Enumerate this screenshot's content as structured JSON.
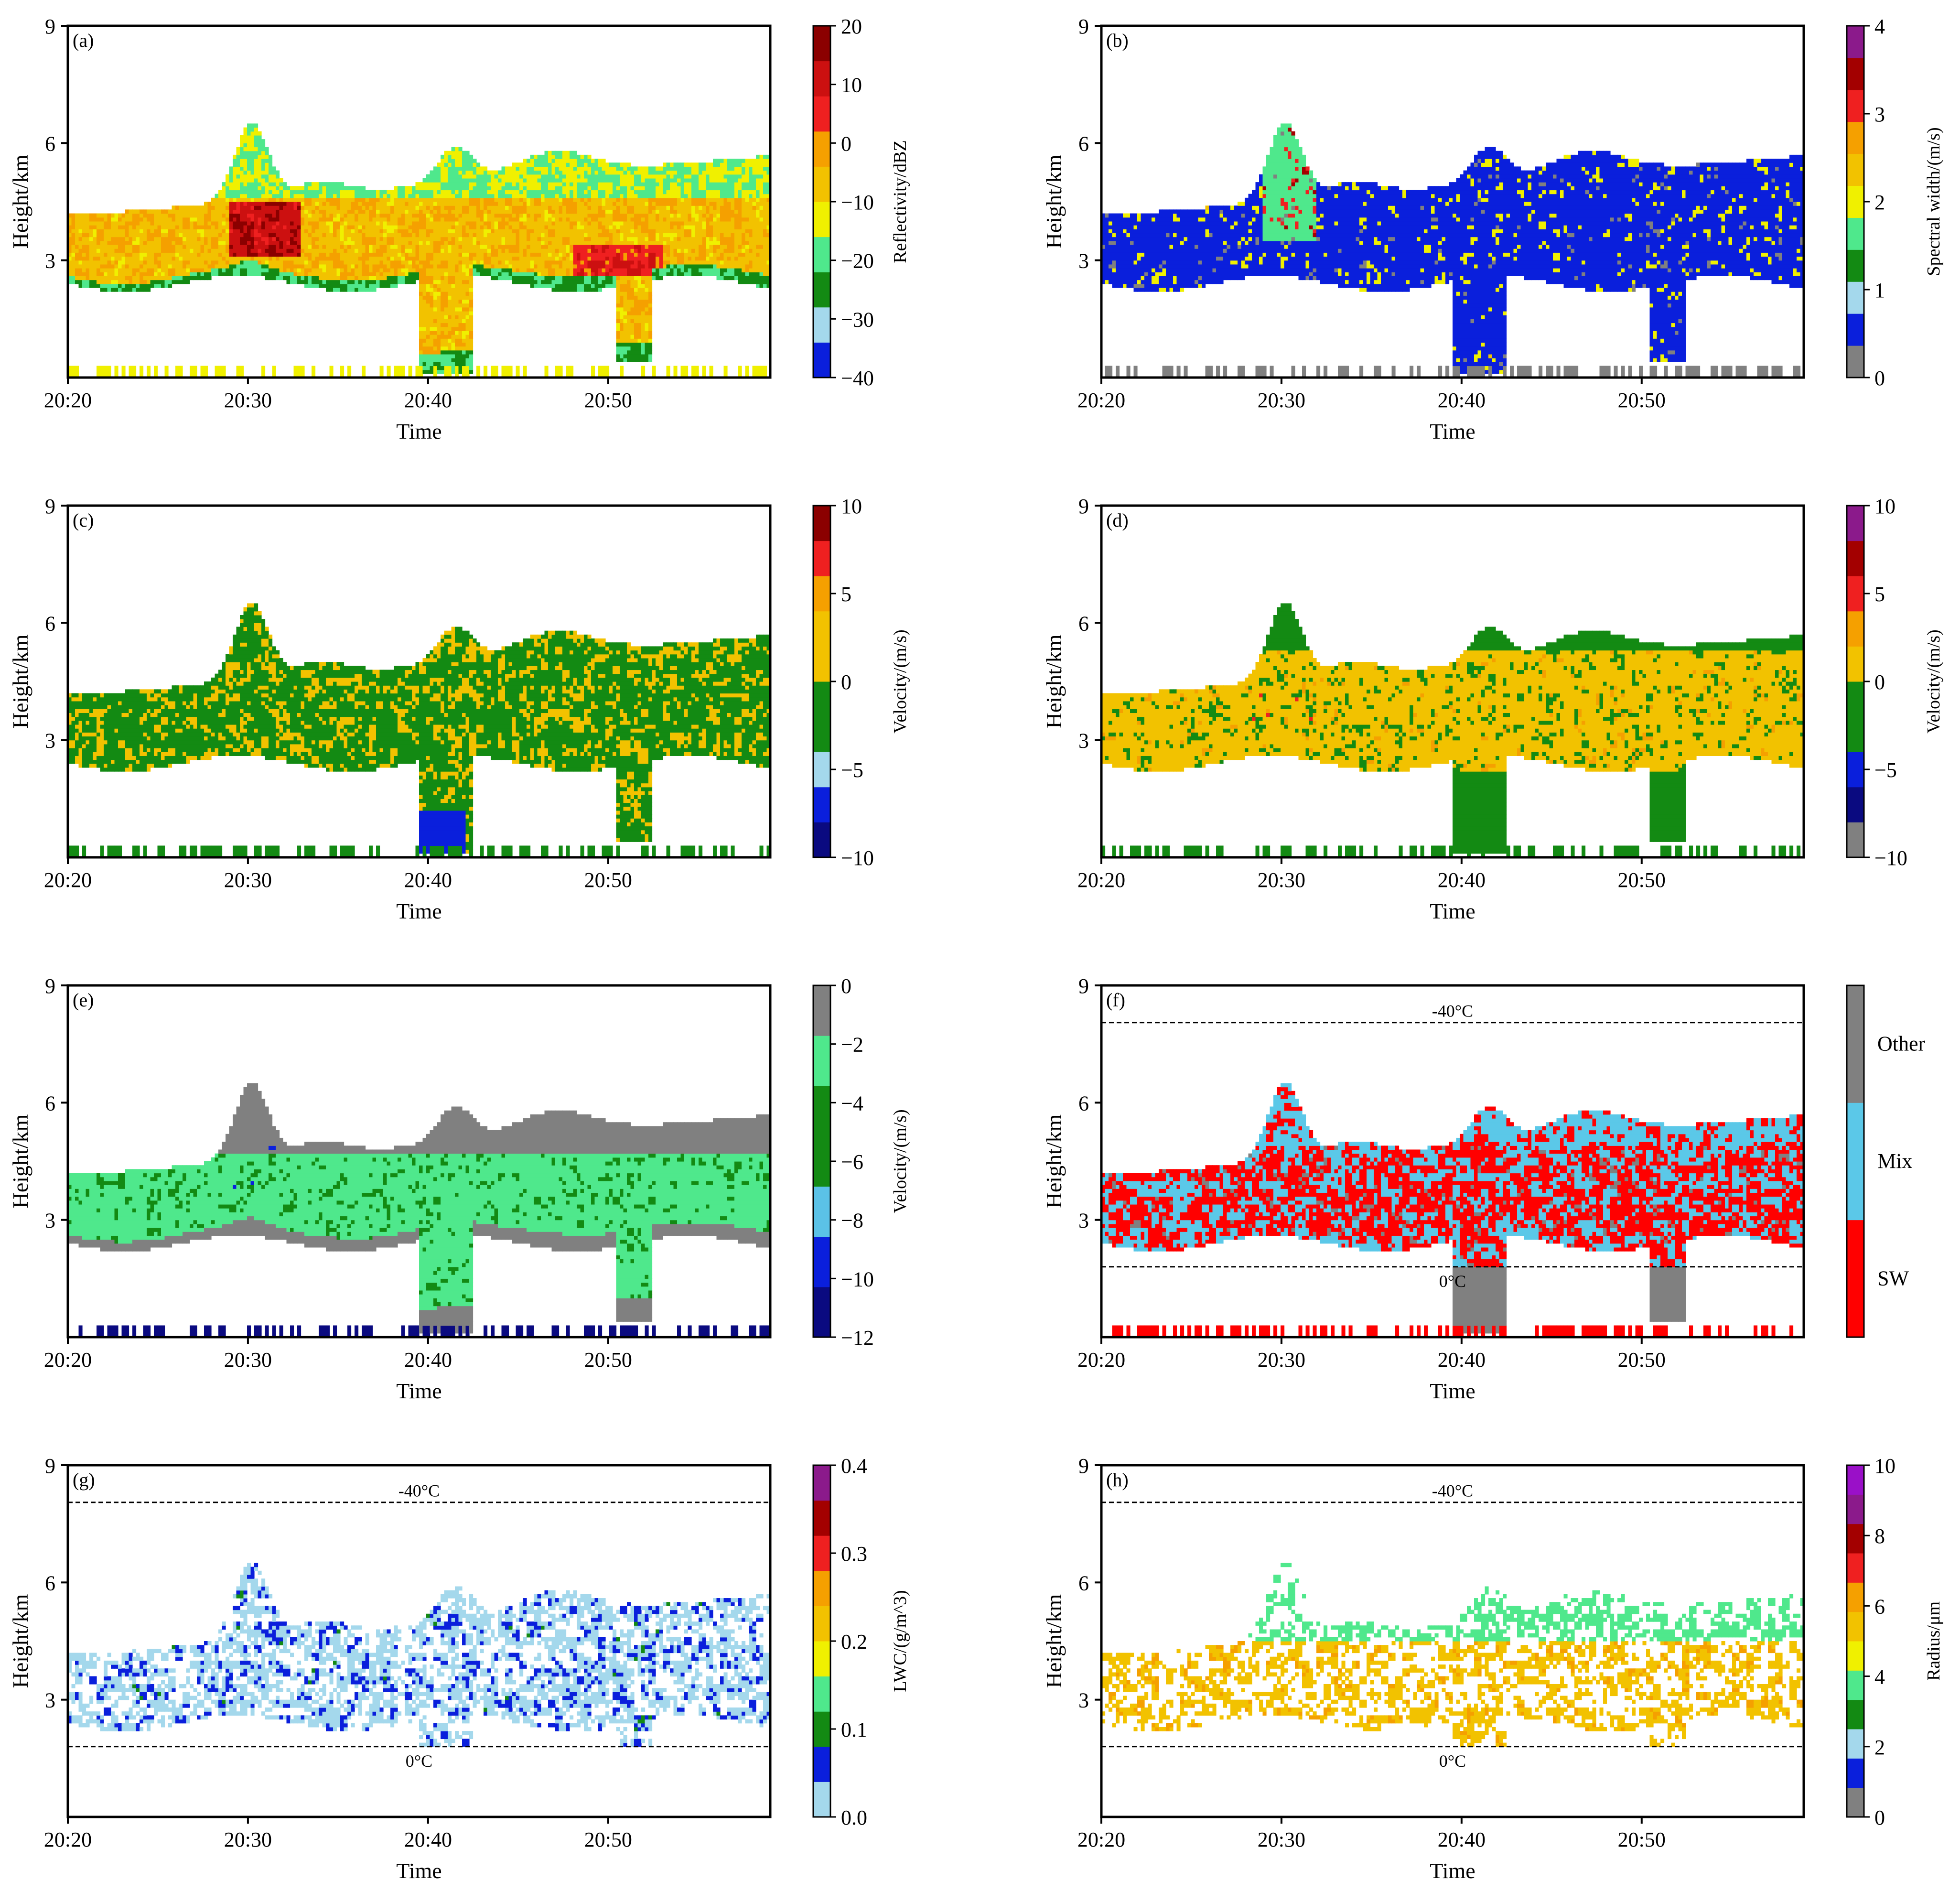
{
  "chart_data": [
    {
      "id": "a",
      "type": "heatmap",
      "panel_label": "(a)",
      "xlabel": "Time",
      "ylabel": "Height/km",
      "xticks": [
        "20:20",
        "20:30",
        "20:40",
        "20:50"
      ],
      "xlim_min": [
        0,
        39
      ],
      "yticks": [
        "3",
        "6",
        "9"
      ],
      "ylim": [
        0,
        9
      ],
      "colorbar": {
        "label": "Reflectivity/dBZ",
        "ticks": [
          "−40",
          "−30",
          "−20",
          "−10",
          "0",
          "10",
          "20"
        ],
        "range": [
          -40,
          20
        ],
        "colors": [
          "#0a1fdc",
          "#a4d8ec",
          "#138a13",
          "#4fe88c",
          "#f0f000",
          "#f2c200",
          "#f5a000",
          "#ef2020",
          "#cc1010",
          "#8b0000"
        ]
      },
      "dashed_lines": []
    },
    {
      "id": "b",
      "type": "heatmap",
      "panel_label": "(b)",
      "xlabel": "Time",
      "ylabel": "Height/km",
      "xticks": [
        "20:20",
        "20:30",
        "20:40",
        "20:50"
      ],
      "xlim_min": [
        0,
        39
      ],
      "yticks": [
        "3",
        "6",
        "9"
      ],
      "ylim": [
        0,
        9
      ],
      "colorbar": {
        "label": "Spectral width/(m/s)",
        "ticks": [
          "0",
          "1",
          "2",
          "3",
          "4"
        ],
        "range": [
          0,
          4
        ],
        "colors": [
          "#808080",
          "#0a1fdc",
          "#a4d8ec",
          "#138a13",
          "#4fe88c",
          "#f0f000",
          "#f2c200",
          "#f5a000",
          "#ef2020",
          "#a30000",
          "#8b1a8b"
        ]
      },
      "dashed_lines": []
    },
    {
      "id": "c",
      "type": "heatmap",
      "panel_label": "(c)",
      "xlabel": "Time",
      "ylabel": "Height/km",
      "xticks": [
        "20:20",
        "20:30",
        "20:40",
        "20:50"
      ],
      "xlim_min": [
        0,
        39
      ],
      "yticks": [
        "3",
        "6",
        "9"
      ],
      "ylim": [
        0,
        9
      ],
      "colorbar": {
        "label": "Velocity/(m/s)",
        "ticks": [
          "−10",
          "−5",
          "0",
          "5",
          "10"
        ],
        "range": [
          -10,
          10
        ],
        "colors": [
          "#0a0a80",
          "#0a1fdc",
          "#a4d8ec",
          "#138a13",
          "#138a13",
          "#f2c200",
          "#f2c200",
          "#f5a000",
          "#ef2020",
          "#8b0000"
        ]
      },
      "dashed_lines": []
    },
    {
      "id": "d",
      "type": "heatmap",
      "panel_label": "(d)",
      "xlabel": "Time",
      "ylabel": "Height/km",
      "xticks": [
        "20:20",
        "20:30",
        "20:40",
        "20:50"
      ],
      "xlim_min": [
        0,
        39
      ],
      "yticks": [
        "3",
        "6",
        "9"
      ],
      "ylim": [
        0,
        9
      ],
      "colorbar": {
        "label": "Velocity/(m/s)",
        "ticks": [
          "−10",
          "−5",
          "0",
          "5",
          "10"
        ],
        "range": [
          -10,
          10
        ],
        "colors": [
          "#808080",
          "#0a0a80",
          "#0a1fdc",
          "#138a13",
          "#138a13",
          "#f2c200",
          "#f5a000",
          "#ef2020",
          "#a30000",
          "#8b1a8b"
        ]
      },
      "dashed_lines": []
    },
    {
      "id": "e",
      "type": "heatmap",
      "panel_label": "(e)",
      "xlabel": "Time",
      "ylabel": "Height/km",
      "xticks": [
        "20:20",
        "20:30",
        "20:40",
        "20:50"
      ],
      "xlim_min": [
        0,
        39
      ],
      "yticks": [
        "3",
        "6",
        "9"
      ],
      "ylim": [
        0,
        9
      ],
      "colorbar": {
        "label": "Velocity/(m/s)",
        "ticks": [
          "−12",
          "−10",
          "−8",
          "−6",
          "−4",
          "−2",
          "0"
        ],
        "range": [
          -12,
          0
        ],
        "colors": [
          "#0a0a80",
          "#0a1fdc",
          "#5bc2e7",
          "#138a13",
          "#138a13",
          "#4fe88c",
          "#808080"
        ]
      },
      "dashed_lines": []
    },
    {
      "id": "f",
      "type": "heatmap",
      "panel_label": "(f)",
      "xlabel": "Time",
      "ylabel": "Height/km",
      "xticks": [
        "20:20",
        "20:30",
        "20:40",
        "20:50"
      ],
      "xlim_min": [
        0,
        39
      ],
      "yticks": [
        "3",
        "6",
        "9"
      ],
      "ylim": [
        0,
        9
      ],
      "colorbar": {
        "label": "",
        "categories": [
          "SW",
          "Mix",
          "Other"
        ],
        "colors": [
          "#ff0000",
          "#5bc8e8",
          "#808080"
        ]
      },
      "dashed_lines": [
        {
          "height_km": 8.05,
          "label": "-40°C"
        },
        {
          "height_km": 1.8,
          "label": "0°C"
        }
      ]
    },
    {
      "id": "g",
      "type": "heatmap",
      "panel_label": "(g)",
      "xlabel": "Time",
      "ylabel": "Height/km",
      "xticks": [
        "20:20",
        "20:30",
        "20:40",
        "20:50"
      ],
      "xlim_min": [
        0,
        39
      ],
      "yticks": [
        "3",
        "6",
        "9"
      ],
      "ylim": [
        0,
        9
      ],
      "colorbar": {
        "label": "LWC/(g/m^3)",
        "ticks": [
          "0.0",
          "0.1",
          "0.2",
          "0.3",
          "0.4"
        ],
        "range": [
          0,
          0.4
        ],
        "colors": [
          "#a4d8ec",
          "#0a1fdc",
          "#138a13",
          "#4fe88c",
          "#f0f000",
          "#f2c200",
          "#f5a000",
          "#ef2020",
          "#a30000",
          "#8b1a8b"
        ]
      },
      "dashed_lines": [
        {
          "height_km": 8.05,
          "label": "-40°C"
        },
        {
          "height_km": 1.8,
          "label": "0°C"
        }
      ]
    },
    {
      "id": "h",
      "type": "heatmap",
      "panel_label": "(h)",
      "xlabel": "Time",
      "ylabel": "Height/km",
      "xticks": [
        "20:20",
        "20:30",
        "20:40",
        "20:50"
      ],
      "xlim_min": [
        0,
        39
      ],
      "yticks": [
        "3",
        "6",
        "9"
      ],
      "ylim": [
        0,
        9
      ],
      "colorbar": {
        "label": "Radius/μm",
        "ticks": [
          "0",
          "2",
          "4",
          "6",
          "8",
          "10"
        ],
        "range": [
          0,
          10
        ],
        "colors": [
          "#808080",
          "#0a1fdc",
          "#a4d8ec",
          "#138a13",
          "#4fe88c",
          "#f0f000",
          "#f2c200",
          "#f5a000",
          "#ef2020",
          "#a30000",
          "#8b1a8b",
          "#9a10c8"
        ]
      },
      "dashed_lines": [
        {
          "height_km": 8.05,
          "label": "-40°C"
        },
        {
          "height_km": 1.8,
          "label": "0°C"
        }
      ]
    }
  ]
}
